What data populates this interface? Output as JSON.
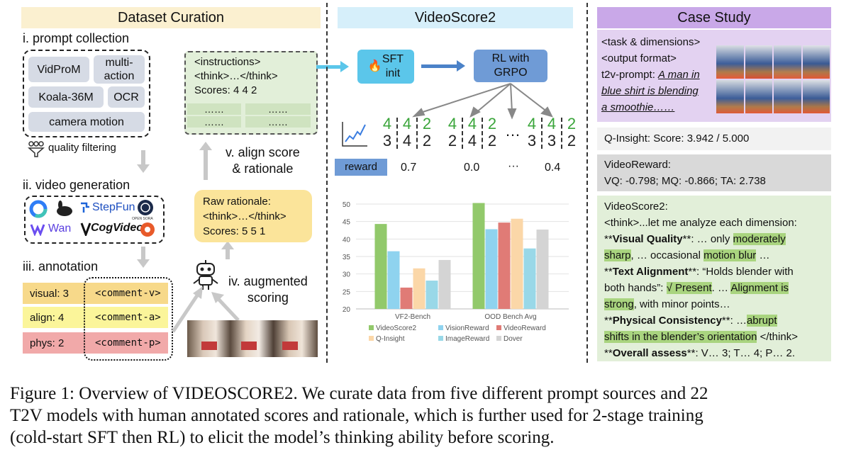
{
  "sections": {
    "curation": "Dataset Curation",
    "model": "VideoScore2",
    "case": "Case Study"
  },
  "curation": {
    "step1": "i. prompt collection",
    "sources": [
      "VidProM",
      "multi-\naction",
      "Koala-36M",
      "OCR",
      "camera motion"
    ],
    "filter": "quality filtering",
    "step2": "ii. video generation",
    "gen_logos": [
      "StepFun",
      "Wan",
      "CogVideo",
      "OPEN SORA"
    ],
    "step3": "iii. annotation",
    "annotations": [
      {
        "key": "visual: 3",
        "comment": "<comment-v>",
        "color": "#f7d98a"
      },
      {
        "key": "align:  4",
        "comment": "<comment-a>",
        "color": "#fbf59a"
      },
      {
        "key": "phys:  2",
        "comment": "<comment-p>",
        "color": "#f1a9a9"
      }
    ],
    "step4": "iv. augmented\nscoring",
    "raw_lines": [
      "Raw rationale:",
      "<think>…</think>",
      "Scores: 5  5  1"
    ],
    "step5": "v. align score\n& rationale",
    "aligned_lines": [
      "<instructions>",
      "<think>…</think>",
      "Scores: 4  4  2"
    ],
    "dots": "……"
  },
  "model": {
    "sft": "SFT\ninit",
    "rl": "RL with\nGRPO",
    "rollouts": [
      {
        "top": [
          "4",
          "4",
          "2"
        ],
        "bottom": [
          "3",
          "4",
          "2"
        ]
      },
      {
        "top": [
          "4",
          "4",
          "2"
        ],
        "bottom": [
          "2",
          "4",
          "2"
        ]
      },
      {
        "top": [
          "4",
          "4",
          "2"
        ],
        "bottom": [
          "3",
          "3",
          "2"
        ]
      }
    ],
    "ellipsis": "…",
    "reward_label": "reward",
    "rewards": [
      "0.7",
      "0.0",
      "···",
      "0.4"
    ]
  },
  "chart_data": {
    "type": "bar",
    "categories": [
      "VF2-Bench",
      "OOD Bench Avg"
    ],
    "ylim": [
      20,
      50
    ],
    "yticks": [
      20,
      25,
      30,
      35,
      40,
      45,
      50
    ],
    "series": [
      {
        "name": "VideoScore2",
        "color": "#92c96b",
        "values": [
          44.3,
          50.3
        ]
      },
      {
        "name": "VisionReward",
        "color": "#8fd3ef",
        "values": [
          36.5,
          42.8
        ]
      },
      {
        "name": "VideoReward",
        "color": "#e07b76",
        "values": [
          26.1,
          44.7
        ]
      },
      {
        "name": "Q-Insight",
        "color": "#fbd7a8",
        "values": [
          31.6,
          45.8
        ]
      },
      {
        "name": "ImageReward",
        "color": "#99d8e8",
        "values": [
          28.1,
          37.3
        ]
      },
      {
        "name": "Dover",
        "color": "#d4d4d4",
        "values": [
          34.0,
          42.7
        ]
      }
    ]
  },
  "case": {
    "prompt_lines": [
      "<task & dimensions>",
      "<output format>",
      "t2v-prompt: "
    ],
    "prompt_text": [
      "A man in",
      "blue shirt is blending",
      "a smoothie……"
    ],
    "qinsight": "Q-Insight:  Score: 3.942 / 5.000",
    "videoreward_title": "VideoReward:",
    "videoreward_scores": "VQ: -0.798; MQ: -0.866; TA: 2.738",
    "vs2_title": "VideoScore2:",
    "vs2_think": "<think>...let me analyze each dimension:",
    "vq_label": "Visual Quality",
    "vq_a": ": … only ",
    "vq_hl1": "moderately",
    "vq_hl1b": "sharp",
    "vq_b": ", … occasional ",
    "vq_hl2": "motion blur",
    "vq_c": " …",
    "ta_label": "Text Alignment",
    "ta_a": ": “Holds blender with",
    "ta_b": "both hands”: ",
    "ta_hl1": "√ Present",
    "ta_c": ". … ",
    "ta_hl2": "Alignment is",
    "ta_hl2b": "strong",
    "ta_d": ", with minor points…",
    "pc_label": "Physical Consistency",
    "pc_a": ": …",
    "pc_hl": "abrupt",
    "pc_hlb": "shifts in the blender’s orientation",
    "pc_b": " </think>",
    "oa_label": "Overall assess",
    "oa_a": ": V… 3; T… 4; P… 2."
  },
  "caption": {
    "lines": [
      "Figure 1: Overview of VIDEOSCORE2. We curate data from five different prompt sources and 22",
      "T2V models with human annotated scores and rationale, which is further used for 2-stage training",
      "(cold-start SFT then RL) to elicit the model’s thinking ability before scoring."
    ]
  }
}
